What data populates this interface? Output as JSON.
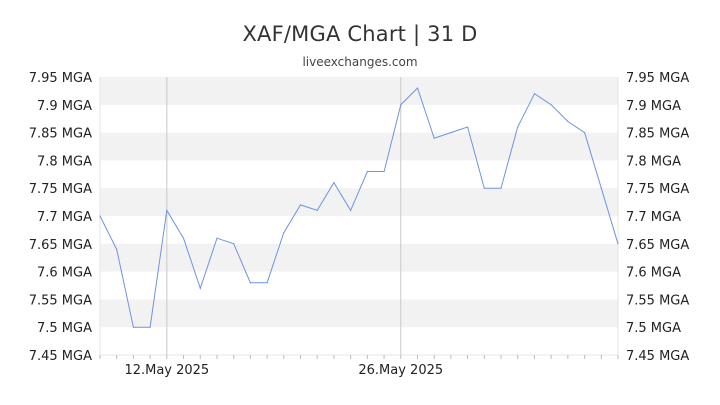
{
  "header": {
    "title": "XAF/MGA Chart | 31 D",
    "subtitle": "liveexchanges.com"
  },
  "chart_data": {
    "type": "line",
    "title": "XAF/MGA Chart | 31 D",
    "subtitle": "liveexchanges.com",
    "xlabel": "",
    "ylabel": "",
    "ylim": [
      7.45,
      7.95
    ],
    "y_ticks": [
      "7.95 MGA",
      "7.9 MGA",
      "7.85 MGA",
      "7.8 MGA",
      "7.75 MGA",
      "7.7 MGA",
      "7.65 MGA",
      "7.6 MGA",
      "7.55 MGA",
      "7.5 MGA",
      "7.45 MGA"
    ],
    "x_ticks": [
      "12.May 2025",
      "26.May 2025"
    ],
    "grid": true,
    "line_color": "#6f94e0",
    "band_color": "#f2f2f2",
    "series": [
      {
        "values": [
          7.7,
          7.64,
          7.5,
          7.5,
          7.71,
          7.66,
          7.57,
          7.66,
          7.65,
          7.58,
          7.58,
          7.67,
          7.72,
          7.71,
          7.76,
          7.71,
          7.78,
          7.78,
          7.9,
          7.93,
          7.84,
          7.85,
          7.86,
          7.75,
          7.75,
          7.86,
          7.92,
          7.9,
          7.87,
          7.85,
          7.75,
          7.65
        ]
      }
    ]
  }
}
